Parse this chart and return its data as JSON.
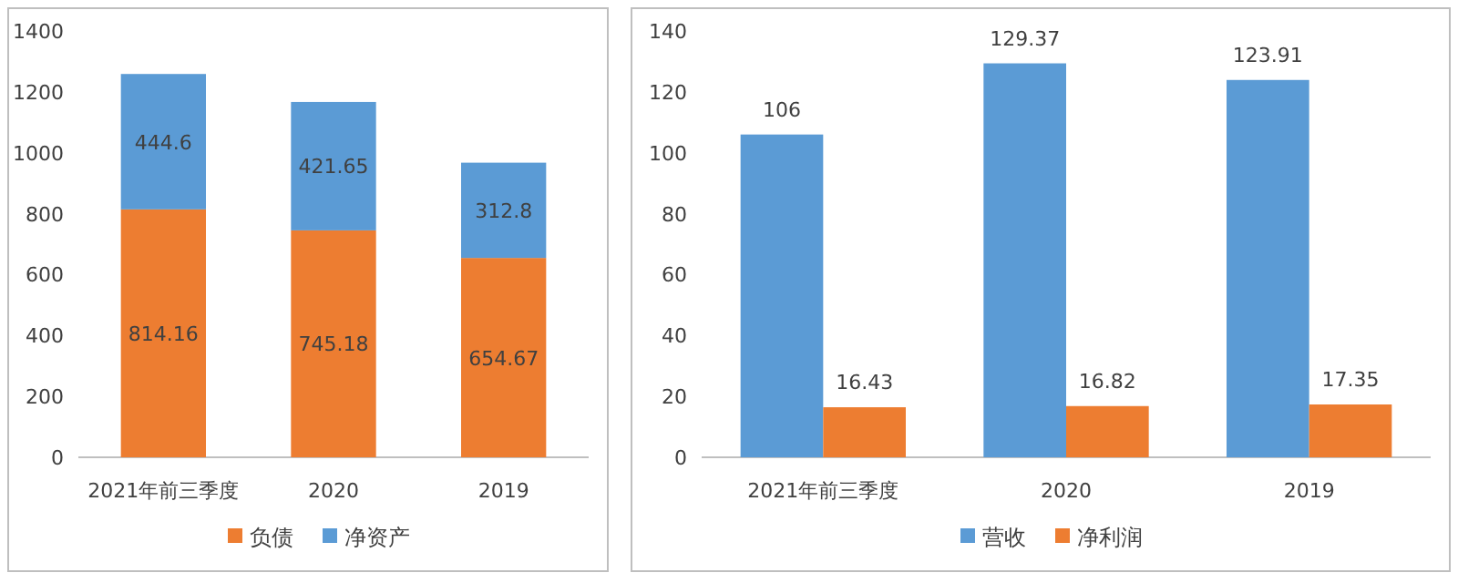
{
  "chart_data": [
    {
      "type": "bar",
      "stacked": true,
      "categories": [
        "2021年前三季度",
        "2020",
        "2019"
      ],
      "series": [
        {
          "name": "负债",
          "color": "#ed7d31",
          "values": [
            814.16,
            745.18,
            654.67
          ]
        },
        {
          "name": "净资产",
          "color": "#5b9bd5",
          "values": [
            444.6,
            421.65,
            312.8
          ]
        }
      ],
      "ylim": [
        0,
        1400
      ],
      "yticks": [
        0,
        200,
        400,
        600,
        800,
        1000,
        1200,
        1400
      ],
      "data_labels": true,
      "legend": "bottom"
    },
    {
      "type": "bar",
      "categories": [
        "2021年前三季度",
        "2020",
        "2019"
      ],
      "series": [
        {
          "name": "营收",
          "color": "#5b9bd5",
          "values": [
            106,
            129.37,
            123.91
          ]
        },
        {
          "name": "净利润",
          "color": "#ed7d31",
          "values": [
            16.43,
            16.82,
            17.35
          ]
        }
      ],
      "ylim": [
        0,
        140
      ],
      "yticks": [
        0,
        20,
        40,
        60,
        80,
        100,
        120,
        140
      ],
      "data_labels": true,
      "legend": "bottom"
    }
  ]
}
